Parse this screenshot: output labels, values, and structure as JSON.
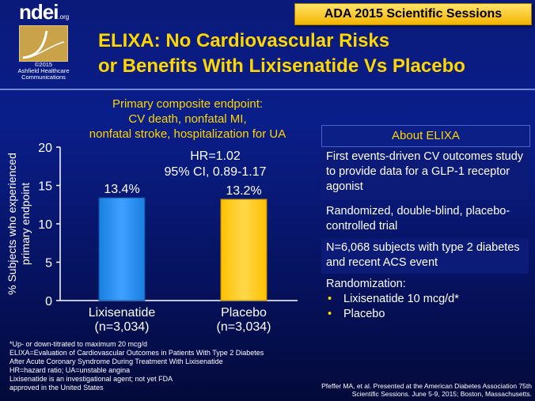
{
  "header": {
    "logo_text": "ndei",
    "logo_suffix": ".org",
    "copyright": "©2015",
    "copyright_owner": "Ashfield Healthcare Communications",
    "banner": "ADA 2015 Scientific Sessions",
    "title_line1": "ELIXA: No Cardiovascular Risks",
    "title_line2": "or Benefits With Lixisenatide Vs Placebo"
  },
  "chart_title": [
    "Primary composite endpoint:",
    "CV death, nonfatal MI,",
    "nonfatal stroke, hospitalization for UA"
  ],
  "chart_data": {
    "type": "bar",
    "title": "Primary composite endpoint: CV death, nonfatal MI, nonfatal stroke, hospitalization for UA",
    "ylabel": "% Subjects who experienced primary endpoint",
    "ylim": [
      0,
      20
    ],
    "yticks": [
      0,
      5,
      10,
      15,
      20
    ],
    "categories": [
      "Lixisenatide (n=3,034)",
      "Placebo (n=3,034)"
    ],
    "category_lines": [
      [
        "Lixisenatide",
        "(n=3,034)"
      ],
      [
        "Placebo",
        "(n=3,034)"
      ]
    ],
    "values": [
      13.4,
      13.2
    ],
    "data_labels": [
      "13.4%",
      "13.2%"
    ],
    "colors": [
      "#1a7fe0",
      "#ffc000"
    ],
    "annotation": [
      "HR=1.02",
      "95% CI, 0.89-1.17"
    ]
  },
  "panel": {
    "header": "About ELIXA",
    "items": [
      "First events-driven CV outcomes study to provide data for a GLP-1 receptor agonist",
      "Randomized, double-blind, placebo-controlled trial",
      "N=6,068 subjects with type 2 diabetes and recent ACS event"
    ],
    "randomization_label": "Randomization:",
    "randomization_bullets": [
      "Lixisenatide 10 mcg/d*",
      "Placebo"
    ]
  },
  "footnotes": [
    "*Up- or down-titrated to maximum 20 mcg/d",
    "ELIXA=Evaluation of Cardiovascular Outcomes in Patients With Type 2 Diabetes",
    "After Acute Coronary Syndrome During Treatment With Lixisenatide",
    "HR=hazard ratio; UA=unstable angina",
    "Lixisenatide is an investigational agent; not yet FDA",
    "approved in the United States"
  ],
  "citation": [
    "Pfeffer MA, et al. Presented at the American Diabetes Association 75th",
    "Scientific Sessions. June 5-9, 2015; Boston, Massachusetts."
  ]
}
